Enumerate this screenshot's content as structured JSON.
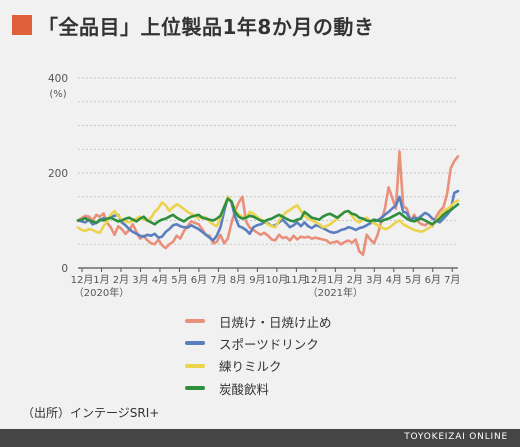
{
  "title": "「全品目」上位製品1年8か月の動き",
  "source": "（出所）インテージSRI+",
  "footer": "TOYOKEIZAI ONLINE",
  "chart_data": {
    "type": "line",
    "ylim": [
      0,
      400
    ],
    "yticks": [
      0,
      200,
      400
    ],
    "ylabel": "(%)",
    "grid": true,
    "legend_position": "bottom",
    "x_month_labels": [
      "12月",
      "1月",
      "2月",
      "3月",
      "4月",
      "5月",
      "6月",
      "7月",
      "8月",
      "9月",
      "10月",
      "11月",
      "12月",
      "1月",
      "2月",
      "3月",
      "4月",
      "5月",
      "6月",
      "7月"
    ],
    "year_labels": [
      {
        "label": "（2020年）",
        "month_index": 1
      },
      {
        "label": "（2021年）",
        "month_index": 13
      }
    ],
    "series": [
      {
        "name": "日焼け・日焼け止め",
        "color": "#e8907a",
        "values": [
          100,
          105,
          110,
          108,
          100,
          112,
          108,
          115,
          95,
          85,
          70,
          88,
          82,
          72,
          80,
          92,
          76,
          62,
          68,
          58,
          52,
          50,
          60,
          48,
          42,
          50,
          55,
          68,
          62,
          78,
          88,
          98,
          95,
          92,
          82,
          70,
          68,
          52,
          55,
          70,
          52,
          62,
          95,
          120,
          138,
          150,
          98,
          85,
          80,
          75,
          70,
          74,
          68,
          60,
          58,
          70,
          63,
          65,
          58,
          68,
          60,
          66,
          64,
          66,
          62,
          64,
          62,
          60,
          58,
          52,
          54,
          56,
          50,
          55,
          58,
          53,
          60,
          35,
          28,
          70,
          60,
          52,
          70,
          98,
          125,
          170,
          148,
          125,
          245,
          130,
          125,
          100,
          112,
          98,
          92,
          90,
          96,
          88,
          108,
          120,
          128,
          155,
          210,
          225,
          235
        ]
      },
      {
        "name": "スポーツドリンク",
        "color": "#5a7fc0",
        "values": [
          100,
          98,
          96,
          102,
          92,
          95,
          100,
          105,
          100,
          108,
          110,
          112,
          96,
          90,
          82,
          76,
          72,
          68,
          66,
          70,
          68,
          72,
          64,
          66,
          76,
          82,
          90,
          92,
          88,
          86,
          85,
          90,
          86,
          82,
          76,
          70,
          64,
          58,
          68,
          86,
          120,
          150,
          138,
          108,
          88,
          85,
          80,
          72,
          86,
          90,
          92,
          96,
          94,
          88,
          90,
          96,
          102,
          94,
          86,
          90,
          96,
          88,
          96,
          88,
          84,
          90,
          88,
          84,
          80,
          76,
          74,
          76,
          80,
          82,
          86,
          84,
          80,
          84,
          86,
          90,
          94,
          98,
          100,
          106,
          112,
          118,
          125,
          132,
          150,
          118,
          116,
          100,
          106,
          104,
          110,
          116,
          112,
          104,
          100,
          96,
          104,
          112,
          122,
          158,
          162
        ]
      },
      {
        "name": "練りミルク",
        "color": "#ecd34c",
        "values": [
          85,
          80,
          78,
          82,
          80,
          76,
          74,
          88,
          98,
          112,
          120,
          110,
          102,
          98,
          96,
          100,
          104,
          108,
          102,
          100,
          106,
          118,
          126,
          138,
          132,
          120,
          128,
          134,
          130,
          124,
          118,
          114,
          110,
          104,
          108,
          106,
          98,
          92,
          88,
          105,
          130,
          150,
          140,
          122,
          112,
          108,
          104,
          118,
          114,
          108,
          102,
          98,
          92,
          88,
          86,
          100,
          110,
          118,
          122,
          128,
          132,
          120,
          110,
          104,
          100,
          96,
          92,
          86,
          88,
          92,
          98,
          104,
          112,
          118,
          120,
          110,
          100,
          96,
          102,
          106,
          98,
          94,
          90,
          86,
          82,
          84,
          90,
          96,
          100,
          92,
          88,
          84,
          80,
          78,
          76,
          80,
          84,
          90,
          100,
          110,
          120,
          124,
          130,
          138,
          142
        ]
      },
      {
        "name": "炭酸飲料",
        "color": "#2f8f3f",
        "values": [
          100,
          102,
          105,
          100,
          98,
          95,
          102,
          100,
          104,
          106,
          102,
          98,
          100,
          104,
          106,
          102,
          98,
          104,
          108,
          100,
          96,
          92,
          98,
          102,
          104,
          108,
          112,
          106,
          102,
          98,
          104,
          108,
          110,
          112,
          106,
          104,
          102,
          100,
          104,
          110,
          128,
          146,
          140,
          118,
          108,
          104,
          106,
          110,
          108,
          104,
          100,
          98,
          102,
          104,
          108,
          112,
          108,
          104,
          100,
          98,
          102,
          104,
          118,
          112,
          106,
          104,
          102,
          108,
          112,
          114,
          110,
          106,
          112,
          118,
          120,
          114,
          112,
          106,
          104,
          100,
          98,
          102,
          100,
          98,
          102,
          104,
          108,
          112,
          116,
          110,
          104,
          100,
          98,
          102,
          104,
          100,
          96,
          92,
          98,
          104,
          112,
          118,
          122,
          128,
          134
        ]
      }
    ]
  }
}
